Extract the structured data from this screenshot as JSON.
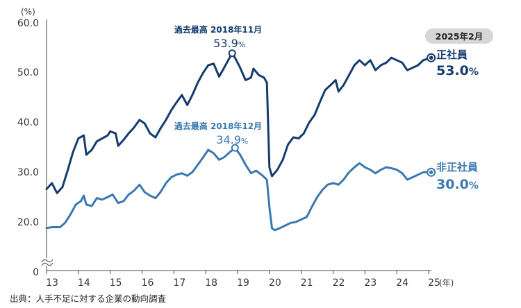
{
  "chart_data": {
    "type": "line",
    "y_unit": "(%)",
    "x_unit": "(年)",
    "ylim": [
      0,
      60
    ],
    "y_ticks": [
      "60.0",
      "50.0",
      "40.0",
      "30.0",
      "20.0",
      "0"
    ],
    "y_break": true,
    "x_ticks": [
      "13",
      "14",
      "15",
      "16",
      "17",
      "18",
      "19",
      "20",
      "21",
      "22",
      "23",
      "24",
      "25"
    ],
    "grid": false,
    "latest_badge": "2025年2月",
    "colors": {
      "正社員": "#143c6e",
      "非正社員": "#3a79b0",
      "badge_bg": "#d6d6d6"
    },
    "series": [
      {
        "name": "正社員",
        "end_value_label": "53.0%",
        "peak_label": "過去最高 2018年11月",
        "peak_value_label": "53.9%",
        "peak": [
          2018.83,
          53.9
        ],
        "points": [
          [
            2013.0,
            26.6
          ],
          [
            2013.17,
            27.8
          ],
          [
            2013.33,
            25.8
          ],
          [
            2013.5,
            27.0
          ],
          [
            2013.67,
            30.5
          ],
          [
            2013.83,
            34.0
          ],
          [
            2014.0,
            36.8
          ],
          [
            2014.17,
            37.4
          ],
          [
            2014.25,
            33.5
          ],
          [
            2014.42,
            34.5
          ],
          [
            2014.58,
            36.2
          ],
          [
            2014.75,
            36.8
          ],
          [
            2014.92,
            37.4
          ],
          [
            2015.0,
            38.2
          ],
          [
            2015.17,
            37.8
          ],
          [
            2015.25,
            35.3
          ],
          [
            2015.42,
            36.5
          ],
          [
            2015.58,
            37.8
          ],
          [
            2015.75,
            39.0
          ],
          [
            2015.92,
            40.5
          ],
          [
            2016.08,
            39.8
          ],
          [
            2016.25,
            37.8
          ],
          [
            2016.42,
            37.0
          ],
          [
            2016.58,
            38.8
          ],
          [
            2016.75,
            40.5
          ],
          [
            2016.92,
            42.5
          ],
          [
            2017.08,
            44.0
          ],
          [
            2017.25,
            45.5
          ],
          [
            2017.42,
            43.5
          ],
          [
            2017.58,
            45.5
          ],
          [
            2017.75,
            48.0
          ],
          [
            2017.92,
            50.0
          ],
          [
            2018.08,
            51.5
          ],
          [
            2018.25,
            51.8
          ],
          [
            2018.42,
            49.2
          ],
          [
            2018.58,
            51.0
          ],
          [
            2018.75,
            53.0
          ],
          [
            2018.83,
            53.9
          ],
          [
            2018.92,
            53.0
          ],
          [
            2019.08,
            51.0
          ],
          [
            2019.25,
            48.5
          ],
          [
            2019.42,
            49.0
          ],
          [
            2019.5,
            50.8
          ],
          [
            2019.67,
            49.5
          ],
          [
            2019.83,
            49.0
          ],
          [
            2019.92,
            48.0
          ],
          [
            2020.0,
            31.0
          ],
          [
            2020.08,
            29.2
          ],
          [
            2020.25,
            30.5
          ],
          [
            2020.42,
            32.5
          ],
          [
            2020.58,
            35.5
          ],
          [
            2020.75,
            37.0
          ],
          [
            2020.92,
            36.8
          ],
          [
            2021.08,
            37.8
          ],
          [
            2021.25,
            40.0
          ],
          [
            2021.42,
            41.5
          ],
          [
            2021.58,
            44.0
          ],
          [
            2021.75,
            46.5
          ],
          [
            2021.92,
            47.5
          ],
          [
            2022.08,
            48.5
          ],
          [
            2022.17,
            46.2
          ],
          [
            2022.33,
            47.5
          ],
          [
            2022.5,
            49.5
          ],
          [
            2022.67,
            51.5
          ],
          [
            2022.83,
            52.5
          ],
          [
            2023.0,
            51.5
          ],
          [
            2023.17,
            52.5
          ],
          [
            2023.33,
            50.5
          ],
          [
            2023.5,
            51.5
          ],
          [
            2023.67,
            52.0
          ],
          [
            2023.83,
            53.0
          ],
          [
            2024.0,
            52.5
          ],
          [
            2024.17,
            52.0
          ],
          [
            2024.33,
            50.5
          ],
          [
            2024.5,
            51.0
          ],
          [
            2024.67,
            51.5
          ],
          [
            2024.83,
            52.5
          ],
          [
            2025.08,
            53.0
          ]
        ]
      },
      {
        "name": "非正社員",
        "end_value_label": "30.0%",
        "peak_label": "過去最高 2018年12月",
        "peak_value_label": "34.9%",
        "peak": [
          2018.92,
          34.9
        ],
        "points": [
          [
            2013.0,
            16.5
          ],
          [
            2013.17,
            17.0
          ],
          [
            2013.42,
            17.0
          ],
          [
            2013.58,
            19.5
          ],
          [
            2013.75,
            21.5
          ],
          [
            2013.92,
            23.5
          ],
          [
            2014.08,
            24.2
          ],
          [
            2014.17,
            25.3
          ],
          [
            2014.25,
            23.5
          ],
          [
            2014.42,
            23.2
          ],
          [
            2014.58,
            24.8
          ],
          [
            2014.75,
            24.5
          ],
          [
            2014.92,
            25.0
          ],
          [
            2015.08,
            25.5
          ],
          [
            2015.25,
            23.8
          ],
          [
            2015.42,
            24.2
          ],
          [
            2015.58,
            25.5
          ],
          [
            2015.75,
            26.3
          ],
          [
            2015.92,
            27.5
          ],
          [
            2016.08,
            26.0
          ],
          [
            2016.25,
            25.3
          ],
          [
            2016.42,
            24.8
          ],
          [
            2016.58,
            26.0
          ],
          [
            2016.75,
            27.8
          ],
          [
            2016.92,
            29.0
          ],
          [
            2017.08,
            29.5
          ],
          [
            2017.25,
            29.8
          ],
          [
            2017.42,
            29.3
          ],
          [
            2017.58,
            30.0
          ],
          [
            2017.75,
            31.5
          ],
          [
            2017.92,
            33.0
          ],
          [
            2018.08,
            34.5
          ],
          [
            2018.25,
            33.8
          ],
          [
            2018.42,
            32.5
          ],
          [
            2018.58,
            33.0
          ],
          [
            2018.75,
            34.0
          ],
          [
            2018.92,
            34.9
          ],
          [
            2019.08,
            33.5
          ],
          [
            2019.25,
            31.5
          ],
          [
            2019.42,
            29.8
          ],
          [
            2019.58,
            30.3
          ],
          [
            2019.75,
            29.5
          ],
          [
            2019.92,
            28.5
          ],
          [
            2020.0,
            23.0
          ],
          [
            2020.08,
            16.5
          ],
          [
            2020.17,
            15.3
          ],
          [
            2020.33,
            16.5
          ],
          [
            2020.5,
            18.0
          ],
          [
            2020.67,
            19.5
          ],
          [
            2020.83,
            20.0
          ],
          [
            2021.0,
            20.5
          ],
          [
            2021.17,
            21.0
          ],
          [
            2021.33,
            23.0
          ],
          [
            2021.5,
            25.0
          ],
          [
            2021.67,
            26.5
          ],
          [
            2021.83,
            27.5
          ],
          [
            2022.0,
            27.8
          ],
          [
            2022.17,
            27.5
          ],
          [
            2022.33,
            28.5
          ],
          [
            2022.5,
            30.0
          ],
          [
            2022.67,
            31.0
          ],
          [
            2022.83,
            31.8
          ],
          [
            2023.0,
            31.0
          ],
          [
            2023.17,
            30.5
          ],
          [
            2023.33,
            29.8
          ],
          [
            2023.5,
            30.5
          ],
          [
            2023.67,
            31.0
          ],
          [
            2023.83,
            30.8
          ],
          [
            2024.0,
            30.5
          ],
          [
            2024.17,
            29.8
          ],
          [
            2024.33,
            28.5
          ],
          [
            2024.5,
            29.0
          ],
          [
            2024.67,
            29.5
          ],
          [
            2024.83,
            30.0
          ],
          [
            2025.08,
            30.0
          ]
        ]
      }
    ]
  },
  "source": "出典：人手不足に対する企業の動向調査"
}
